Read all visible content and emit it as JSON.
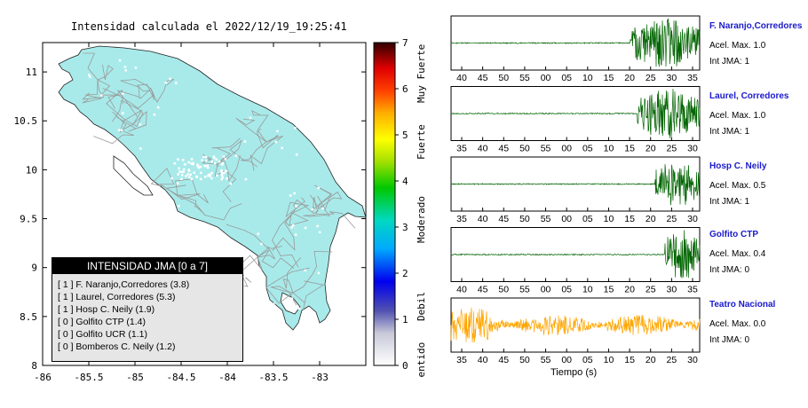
{
  "map": {
    "title": "Intensidad calculada el 2022/12/19_19:25:41",
    "x_ticks": [
      "-86",
      "-85.5",
      "-85",
      "-84.5",
      "-84",
      "-83.5",
      "-83"
    ],
    "y_ticks": [
      "11",
      "10.5",
      "10",
      "9.5",
      "9",
      "8.5",
      "8"
    ],
    "xlim": [
      -86,
      -82.5
    ],
    "ylim": [
      8,
      11.3
    ],
    "land_color": "#a8eaea",
    "road_color": "#9a9a9a"
  },
  "legend": {
    "title": "INTENSIDAD JMA [0 a 7]",
    "rows": [
      "[ 1 ]  F. Naranjo,Corredores (3.8)",
      "[ 1 ]  Laurel, Corredores (5.3)",
      "[ 1 ]  Hosp C. Neily (1.9)",
      "[ 0 ]  Golfito CTP (1.4)",
      "[ 0 ]  Golfito UCR (1.1)",
      "[ 0 ]  Bomberos C. Neily (1.2)"
    ]
  },
  "colorbar": {
    "ticks": [
      "0",
      "1",
      "2",
      "3",
      "4",
      "5",
      "6",
      "7"
    ],
    "labels": [
      "No sentido",
      "Debil",
      "Moderado",
      "Fuerte",
      "Muy Fuerte"
    ]
  },
  "traces": {
    "xlabel": "Tiempo (s)",
    "stations": [
      {
        "name": "F. Naranjo,Corredores",
        "acel": "Acel. Max. 1.0",
        "jma": "Int JMA: 1",
        "color": "#006400",
        "ticks": [
          "40",
          "45",
          "50",
          "55",
          "00",
          "05",
          "10",
          "15",
          "20",
          "25",
          "30",
          "35"
        ],
        "onset": 0.72,
        "amp": 1.0
      },
      {
        "name": "Laurel, Corredores",
        "acel": "Acel. Max. 1.0",
        "jma": "Int JMA: 1",
        "color": "#006400",
        "ticks": [
          "35",
          "40",
          "45",
          "50",
          "55",
          "00",
          "05",
          "10",
          "15",
          "20",
          "25",
          "30"
        ],
        "onset": 0.75,
        "amp": 1.0
      },
      {
        "name": "Hosp C. Neily",
        "acel": "Acel. Max. 0.5",
        "jma": "Int JMA: 1",
        "color": "#006400",
        "ticks": [
          "35",
          "40",
          "45",
          "50",
          "55",
          "00",
          "05",
          "10",
          "15",
          "20",
          "25",
          "30"
        ],
        "onset": 0.82,
        "amp": 0.9
      },
      {
        "name": "Golfito CTP",
        "acel": "Acel. Max. 0.4",
        "jma": "Int JMA: 0",
        "color": "#006400",
        "ticks": [
          "40",
          "45",
          "50",
          "55",
          "00",
          "05",
          "10",
          "15",
          "20",
          "25",
          "30",
          "35"
        ],
        "onset": 0.86,
        "amp": 1.0
      },
      {
        "name": "Teatro Nacional",
        "acel": "Acel. Max. 0.0",
        "jma": "Int JMA: 0",
        "color": "#ffa500",
        "ticks": [
          "35",
          "40",
          "45",
          "50",
          "55",
          "00",
          "05",
          "10",
          "15",
          "20",
          "25",
          "30"
        ],
        "onset": 0.0,
        "amp": 0.7
      }
    ]
  },
  "chart_data": {
    "type": "heatmap",
    "title": "Intensidad calculada el 2022/12/19_19:25:41",
    "xlim": [
      -86,
      -82.5
    ],
    "ylim": [
      8,
      11.3
    ],
    "colorbar_range": [
      0,
      7
    ],
    "legend_title": "INTENSIDAD JMA [0 a 7]",
    "stations": [
      {
        "name": "F. Naranjo,Corredores",
        "jma": 1,
        "value": 3.8
      },
      {
        "name": "Laurel, Corredores",
        "jma": 1,
        "value": 5.3
      },
      {
        "name": "Hosp C. Neily",
        "jma": 1,
        "value": 1.9
      },
      {
        "name": "Golfito CTP",
        "jma": 0,
        "value": 1.4
      },
      {
        "name": "Golfito UCR",
        "jma": 0,
        "value": 1.1
      },
      {
        "name": "Bomberos C. Neily",
        "jma": 0,
        "value": 1.2
      }
    ],
    "seismograms": [
      {
        "name": "F. Naranjo,Corredores",
        "acel_max": 1.0,
        "int_jma": 1
      },
      {
        "name": "Laurel, Corredores",
        "acel_max": 1.0,
        "int_jma": 1
      },
      {
        "name": "Hosp C. Neily",
        "acel_max": 0.5,
        "int_jma": 1
      },
      {
        "name": "Golfito CTP",
        "acel_max": 0.4,
        "int_jma": 0
      },
      {
        "name": "Teatro Nacional",
        "acel_max": 0.0,
        "int_jma": 0
      }
    ],
    "xlabel": "Tiempo (s)"
  }
}
